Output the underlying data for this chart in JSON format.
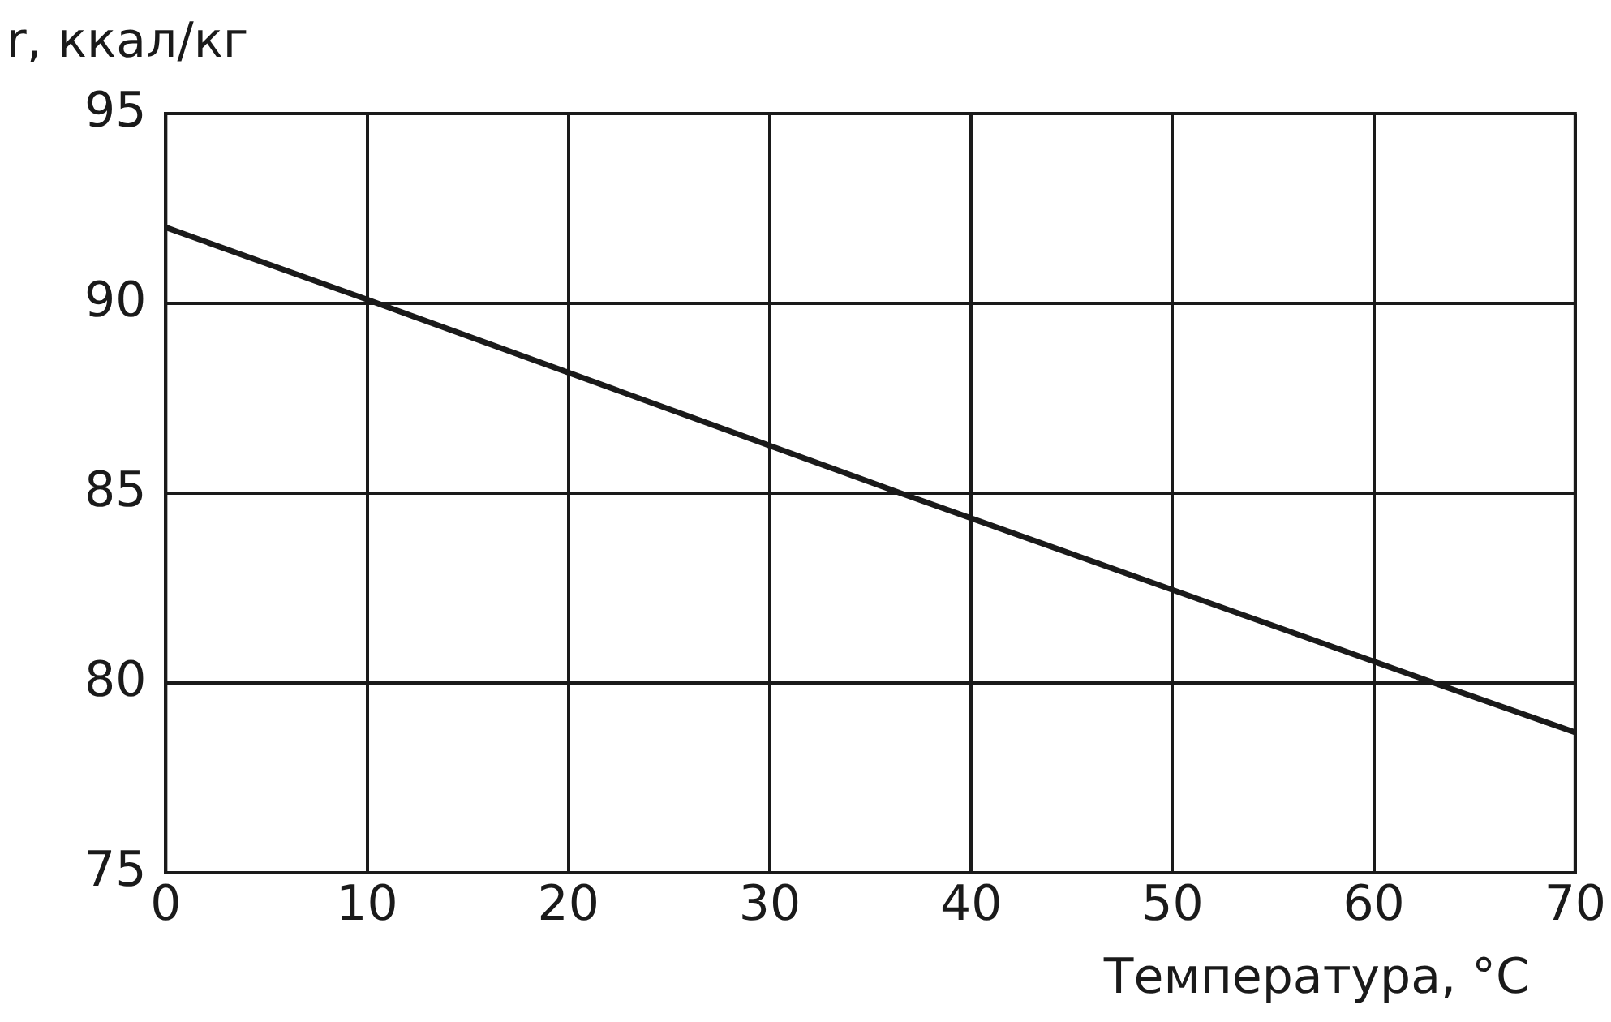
{
  "chart_data": {
    "type": "line",
    "xlabel": "Температура, °C",
    "ylabel": "r, ккал/кг",
    "series": [
      {
        "color": "#1a1a1a",
        "x": [
          0,
          10,
          36.5,
          63,
          70
        ],
        "values": [
          92,
          90.1,
          85,
          80,
          78.7
        ]
      }
    ],
    "xlim": [
      0,
      70
    ],
    "xticks": [
      0,
      10,
      20,
      30,
      40,
      50,
      60,
      70
    ],
    "ylim": [
      75,
      95
    ],
    "yticks": [
      75,
      80,
      85,
      90,
      95
    ],
    "grid": true,
    "legend": false,
    "marker": "none",
    "line_style": "solid"
  }
}
